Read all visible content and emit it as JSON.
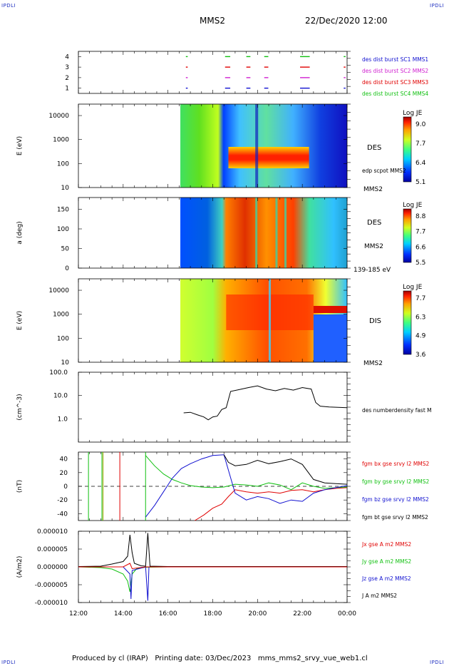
{
  "header": {
    "corner_label": "IPDLI",
    "spacecraft": "MMS2",
    "datetime": "22/Dec/2020 12:00"
  },
  "footer": {
    "text": "Produced by cl (IRAP)   Printing date: 03/Dec/2023   mms_mms2_srvy_vue_web1.cl"
  },
  "time_axis": {
    "ticks": [
      "12:00",
      "14:00",
      "16:00",
      "18:00",
      "20:00",
      "22:00",
      "00:00"
    ]
  },
  "colors": {
    "blue": "#1010d0",
    "magenta": "#d020d0",
    "red": "#e00000",
    "green": "#10c010",
    "black": "#000000"
  },
  "chart_data": [
    {
      "type": "scatter",
      "panel": "burst",
      "yticks": [
        "1",
        "2",
        "3",
        "4"
      ],
      "ylim": [
        0.5,
        4.5
      ],
      "legend": [
        {
          "label": "des dist burst SC1 MMS1",
          "color": "#1010d0"
        },
        {
          "label": "des dist burst SC2 MMS2",
          "color": "#d020d0"
        },
        {
          "label": "des dist burst SC3 MMS3",
          "color": "#e00000"
        },
        {
          "label": "des dist burst SC4 MMS4",
          "color": "#10c010"
        }
      ],
      "intervals_hours": [
        [
          16.8,
          16.85
        ],
        [
          18.55,
          18.75
        ],
        [
          19.5,
          19.65
        ],
        [
          20.3,
          20.45
        ],
        [
          21.9,
          22.3
        ],
        [
          23.85,
          23.9
        ]
      ]
    },
    {
      "type": "heatmap",
      "panel": "des-energy",
      "ylabel": "E (eV)",
      "yscale": "log",
      "ylim": [
        10,
        30000
      ],
      "yticks": [
        "10",
        "100",
        "1000",
        "10000"
      ],
      "labels": [
        "DES",
        "edp scpot MMS2",
        "MMS2"
      ],
      "colorbar": {
        "title": "Log JE",
        "ticks": [
          "9.0",
          "7.7",
          "6.4",
          "5.1"
        ],
        "range": [
          5.1,
          9.0
        ]
      }
    },
    {
      "type": "heatmap",
      "panel": "des-pitch",
      "ylabel": "a (deg)",
      "ylim": [
        0,
        180
      ],
      "yticks": [
        "0",
        "50",
        "100",
        "150"
      ],
      "labels": [
        "DES",
        "MMS2",
        "139-185 eV"
      ],
      "colorbar": {
        "title": "Log JE",
        "ticks": [
          "8.8",
          "7.7",
          "6.6",
          "5.5"
        ],
        "range": [
          5.5,
          8.8
        ]
      }
    },
    {
      "type": "heatmap",
      "panel": "dis-energy",
      "ylabel": "E (eV)",
      "yscale": "log",
      "ylim": [
        10,
        30000
      ],
      "yticks": [
        "10",
        "100",
        "1000",
        "10000"
      ],
      "labels": [
        "DIS",
        "MMS2"
      ],
      "colorbar": {
        "title": "Log JE",
        "ticks": [
          "7.7",
          "6.3",
          "4.9",
          "3.6"
        ],
        "range": [
          3.6,
          7.7
        ]
      }
    },
    {
      "type": "line",
      "panel": "density",
      "ylabel": "(cm^-3)",
      "yscale": "log",
      "ylim": [
        0.1,
        100
      ],
      "yticks": [
        "1.0",
        "10.0",
        "100.0"
      ],
      "legend": [
        {
          "label": "des numberdensity fast M",
          "color": "#000000"
        }
      ],
      "series": [
        {
          "x_hours": [
            16.7,
            17.0,
            17.3,
            17.6,
            17.8,
            18.0,
            18.2,
            18.4,
            18.6,
            18.8,
            19.2,
            19.6,
            20.0,
            20.4,
            20.8,
            21.2,
            21.6,
            22.0,
            22.4,
            22.6,
            22.8,
            23.2,
            23.6,
            24.0
          ],
          "values": [
            1.8,
            1.9,
            1.5,
            1.2,
            0.9,
            1.2,
            1.3,
            2.5,
            3.0,
            15,
            18,
            22,
            26,
            19,
            16,
            20,
            17,
            22,
            19,
            5,
            3.5,
            3.2,
            3.1,
            3.0
          ]
        }
      ]
    },
    {
      "type": "line",
      "panel": "fgm",
      "ylabel": "(nT)",
      "ylim": [
        -50,
        50
      ],
      "yticks": [
        "-40",
        "-20",
        "0",
        "20",
        "40"
      ],
      "legend": [
        {
          "label": "fgm bx gse srvy l2 MMS2",
          "color": "#e00000"
        },
        {
          "label": "fgm by gse srvy l2 MMS2",
          "color": "#10c010"
        },
        {
          "label": "fgm bz gse srvy l2 MMS2",
          "color": "#1010d0"
        },
        {
          "label": "fgm bt gse srvy l2 MMS2",
          "color": "#000000"
        }
      ],
      "series": [
        {
          "name": "fgm bx gse srvy l2 MMS2",
          "x_hours": [
            17.2,
            17.6,
            18.0,
            18.4,
            18.7,
            19.0,
            19.5,
            20.0,
            20.5,
            21.0,
            21.5,
            22.0,
            22.5,
            23.0,
            23.5,
            24.0
          ],
          "values": [
            -50,
            -42,
            -32,
            -26,
            -15,
            -5,
            -8,
            -10,
            -8,
            -10,
            -6,
            -5,
            -8,
            -5,
            -3,
            -2
          ]
        },
        {
          "name": "fgm by gse srvy l2 MMS2",
          "x_hours": [
            15.0,
            15.4,
            15.8,
            16.2,
            16.6,
            17.0,
            17.5,
            18.0,
            18.5,
            19.0,
            19.5,
            20.0,
            20.5,
            21.0,
            21.5,
            22.0,
            22.5,
            23.0,
            23.5,
            24.0
          ],
          "values": [
            45,
            30,
            18,
            10,
            5,
            1,
            -1,
            -2,
            -1,
            3,
            2,
            0,
            5,
            2,
            -5,
            5,
            0,
            -3,
            -2,
            -1
          ]
        },
        {
          "name": "fgm bz gse srvy l2 MMS2",
          "x_hours": [
            15.0,
            15.4,
            15.8,
            16.2,
            16.6,
            17.0,
            17.5,
            18.0,
            18.5,
            19.0,
            19.5,
            20.0,
            20.5,
            21.0,
            21.5,
            22.0,
            22.5,
            23.0,
            23.5,
            24.0
          ],
          "values": [
            -45,
            -28,
            -8,
            12,
            26,
            33,
            40,
            45,
            46,
            -10,
            -20,
            -15,
            -18,
            -25,
            -20,
            -22,
            -10,
            -5,
            -2,
            1
          ]
        },
        {
          "name": "fgm bt gse srvy l2 MMS2",
          "x_hours": [
            18.5,
            18.7,
            19.0,
            19.5,
            20.0,
            20.5,
            21.0,
            21.5,
            22.0,
            22.5,
            23.0,
            23.5,
            24.0
          ],
          "values": [
            46,
            35,
            30,
            32,
            38,
            33,
            36,
            40,
            32,
            10,
            5,
            4,
            3
          ]
        }
      ]
    },
    {
      "type": "line",
      "panel": "current",
      "ylabel": "(A/m2)",
      "ylim": [
        -1e-05,
        1e-05
      ],
      "yticks": [
        "-0.000010",
        "-0.000005",
        "0.000000",
        "0.000005",
        "0.000010"
      ],
      "legend": [
        {
          "label": "Jx gse A m2 MMS2",
          "color": "#e00000"
        },
        {
          "label": "Jy gse A m2 MMS2",
          "color": "#10c010"
        },
        {
          "label": "Jz gse A m2 MMS2",
          "color": "#1010d0"
        },
        {
          "label": "J A m2 MMS2",
          "color": "#000000"
        }
      ],
      "series": [
        {
          "name": "J A m2 MMS2",
          "x_hours": [
            12.0,
            13.0,
            13.5,
            14.0,
            14.2,
            14.3,
            14.4,
            14.5,
            14.8,
            15.0,
            15.1,
            15.2,
            16.0,
            18.0,
            20.0,
            22.0,
            24.0
          ],
          "values": [
            1e-07,
            2e-07,
            8e-07,
            1.5e-06,
            3e-06,
            9e-06,
            4e-06,
            1e-06,
            3e-07,
            2e-07,
            9.5e-06,
            2e-07,
            1e-07,
            1e-07,
            1e-07,
            1e-07,
            1e-07
          ]
        },
        {
          "name": "Jy gse A m2 MMS2",
          "x_hours": [
            12.0,
            13.0,
            13.5,
            14.0,
            14.2,
            14.3,
            14.4,
            14.6,
            15.0,
            16.0,
            24.0
          ],
          "values": [
            0,
            -2e-07,
            -6e-07,
            -2e-06,
            -4e-06,
            -7e-06,
            -2e-06,
            -5e-07,
            -1e-07,
            0,
            0
          ]
        },
        {
          "name": "Jz gse A m2 MMS2",
          "x_hours": [
            12.0,
            14.0,
            14.3,
            14.35,
            14.4,
            15.0,
            15.1,
            15.15,
            15.2,
            16.0,
            24.0
          ],
          "values": [
            0,
            0,
            -2e-06,
            -9e-06,
            -1e-06,
            0,
            -9.5e-06,
            0,
            0,
            0,
            0
          ]
        },
        {
          "name": "Jx gse A m2 MMS2",
          "x_hours": [
            12.0,
            14.0,
            14.3,
            14.4,
            15.0,
            24.0
          ],
          "values": [
            0,
            0,
            1e-06,
            -5e-07,
            0,
            0
          ]
        }
      ]
    }
  ]
}
